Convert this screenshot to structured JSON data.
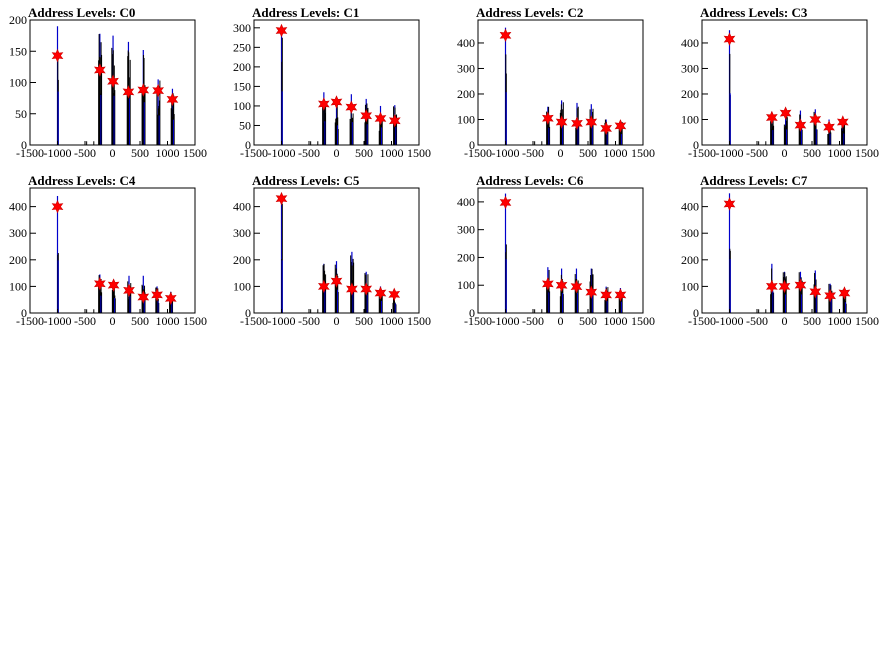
{
  "chart_data": [
    {
      "type": "bar",
      "title": "Address Levels: C0",
      "xlim": [
        -1500,
        1500
      ],
      "ylim": [
        0,
        200
      ],
      "x_ticks": [
        -1500,
        -1000,
        -500,
        0,
        500,
        1000,
        1500
      ],
      "y_ticks": [
        0,
        50,
        100,
        150,
        200
      ],
      "x_tick_labels": [
        "-1500",
        "-1000",
        "-500",
        "0",
        "500",
        "1000",
        "1500"
      ],
      "y_tick_labels": [
        "0",
        "50",
        "100",
        "150",
        "200"
      ],
      "peaks": [
        {
          "x": -1000,
          "height": 190,
          "star": 143
        },
        {
          "x": -230,
          "height": 178,
          "star": 120
        },
        {
          "x": 10,
          "height": 175,
          "star": 102
        },
        {
          "x": 290,
          "height": 165,
          "star": 85
        },
        {
          "x": 560,
          "height": 152,
          "star": 88
        },
        {
          "x": 830,
          "height": 105,
          "star": 87
        },
        {
          "x": 1090,
          "height": 90,
          "star": 73
        }
      ],
      "colors": {
        "hist": "#000000",
        "overlay": "#0000cc",
        "marker": "#ff0000"
      }
    },
    {
      "type": "bar",
      "title": "Address Levels: C1",
      "xlim": [
        -1500,
        1500
      ],
      "ylim": [
        0,
        320
      ],
      "x_ticks": [
        -1500,
        -1000,
        -500,
        0,
        500,
        1000,
        1500
      ],
      "y_ticks": [
        0,
        50,
        100,
        150,
        200,
        250,
        300
      ],
      "x_tick_labels": [
        "-1500",
        "-1000",
        "-500",
        "0",
        "500",
        "1000",
        "1500"
      ],
      "y_tick_labels": [
        "0",
        "50",
        "100",
        "150",
        "200",
        "250",
        "300"
      ],
      "peaks": [
        {
          "x": -1000,
          "height": 305,
          "star": 293
        },
        {
          "x": -230,
          "height": 135,
          "star": 105
        },
        {
          "x": 0,
          "height": 112,
          "star": 110
        },
        {
          "x": 270,
          "height": 130,
          "star": 97
        },
        {
          "x": 540,
          "height": 118,
          "star": 75
        },
        {
          "x": 800,
          "height": 100,
          "star": 68
        },
        {
          "x": 1060,
          "height": 102,
          "star": 62
        }
      ],
      "colors": {
        "hist": "#000000",
        "overlay": "#0000cc",
        "marker": "#ff0000"
      }
    },
    {
      "type": "bar",
      "title": "Address Levels: C2",
      "xlim": [
        -1500,
        1500
      ],
      "ylim": [
        0,
        490
      ],
      "x_ticks": [
        -1500,
        -1000,
        -500,
        0,
        500,
        1000,
        1500
      ],
      "y_ticks": [
        0,
        100,
        200,
        300,
        400
      ],
      "x_tick_labels": [
        "-1500",
        "-1000",
        "-500",
        "0",
        "500",
        "1000",
        "1500"
      ],
      "y_tick_labels": [
        "0",
        "100",
        "200",
        "300",
        "400"
      ],
      "peaks": [
        {
          "x": -1000,
          "height": 460,
          "star": 430
        },
        {
          "x": -230,
          "height": 150,
          "star": 105
        },
        {
          "x": 20,
          "height": 175,
          "star": 90
        },
        {
          "x": 300,
          "height": 165,
          "star": 85
        },
        {
          "x": 560,
          "height": 160,
          "star": 90
        },
        {
          "x": 830,
          "height": 100,
          "star": 65
        },
        {
          "x": 1090,
          "height": 95,
          "star": 75
        }
      ],
      "colors": {
        "hist": "#000000",
        "overlay": "#0000cc",
        "marker": "#ff0000"
      }
    },
    {
      "type": "bar",
      "title": "Address Levels: C3",
      "xlim": [
        -1500,
        1500
      ],
      "ylim": [
        0,
        490
      ],
      "x_ticks": [
        -1500,
        -1000,
        -500,
        0,
        500,
        1000,
        1500
      ],
      "y_ticks": [
        0,
        100,
        200,
        300,
        400
      ],
      "x_tick_labels": [
        "-1500",
        "-1000",
        "-500",
        "0",
        "500",
        "1000",
        "1500"
      ],
      "y_tick_labels": [
        "0",
        "100",
        "200",
        "300",
        "400"
      ],
      "peaks": [
        {
          "x": -1000,
          "height": 450,
          "star": 415
        },
        {
          "x": -230,
          "height": 130,
          "star": 108
        },
        {
          "x": 20,
          "height": 135,
          "star": 125
        },
        {
          "x": 290,
          "height": 135,
          "star": 78
        },
        {
          "x": 560,
          "height": 140,
          "star": 100
        },
        {
          "x": 810,
          "height": 100,
          "star": 70
        },
        {
          "x": 1060,
          "height": 100,
          "star": 90
        }
      ],
      "colors": {
        "hist": "#000000",
        "overlay": "#0000cc",
        "marker": "#ff0000"
      }
    },
    {
      "type": "bar",
      "title": "Address Levels: C4",
      "xlim": [
        -1500,
        1500
      ],
      "ylim": [
        0,
        470
      ],
      "x_ticks": [
        -1500,
        -1000,
        -500,
        0,
        500,
        1000,
        1500
      ],
      "y_ticks": [
        0,
        100,
        200,
        300,
        400
      ],
      "x_tick_labels": [
        "-1500",
        "-1000",
        "-500",
        "0",
        "500",
        "1000",
        "1500"
      ],
      "y_tick_labels": [
        "0",
        "100",
        "200",
        "300",
        "400"
      ],
      "peaks": [
        {
          "x": -1000,
          "height": 440,
          "star": 400
        },
        {
          "x": -230,
          "height": 145,
          "star": 110
        },
        {
          "x": 20,
          "height": 125,
          "star": 105
        },
        {
          "x": 300,
          "height": 140,
          "star": 85
        },
        {
          "x": 560,
          "height": 140,
          "star": 60
        },
        {
          "x": 810,
          "height": 100,
          "star": 68
        },
        {
          "x": 1060,
          "height": 80,
          "star": 55
        }
      ],
      "colors": {
        "hist": "#000000",
        "overlay": "#0000cc",
        "marker": "#ff0000"
      }
    },
    {
      "type": "bar",
      "title": "Address Levels: C5",
      "xlim": [
        -1500,
        1500
      ],
      "ylim": [
        0,
        470
      ],
      "x_ticks": [
        -1500,
        -1000,
        -500,
        0,
        500,
        1000,
        1500
      ],
      "y_ticks": [
        0,
        100,
        200,
        300,
        400
      ],
      "x_tick_labels": [
        "-1500",
        "-1000",
        "-500",
        "0",
        "500",
        "1000",
        "1500"
      ],
      "y_tick_labels": [
        "0",
        "100",
        "200",
        "300",
        "400"
      ],
      "peaks": [
        {
          "x": -1000,
          "height": 440,
          "star": 430
        },
        {
          "x": -230,
          "height": 185,
          "star": 100
        },
        {
          "x": 0,
          "height": 195,
          "star": 120
        },
        {
          "x": 280,
          "height": 230,
          "star": 90
        },
        {
          "x": 540,
          "height": 155,
          "star": 90
        },
        {
          "x": 800,
          "height": 100,
          "star": 75
        },
        {
          "x": 1050,
          "height": 80,
          "star": 70
        }
      ],
      "colors": {
        "hist": "#000000",
        "overlay": "#0000cc",
        "marker": "#ff0000"
      }
    },
    {
      "type": "bar",
      "title": "Address Levels: C6",
      "xlim": [
        -1500,
        1500
      ],
      "ylim": [
        0,
        450
      ],
      "x_ticks": [
        -1500,
        -1000,
        -500,
        0,
        500,
        1000,
        1500
      ],
      "y_ticks": [
        0,
        100,
        200,
        300,
        400
      ],
      "x_tick_labels": [
        "-1500",
        "-1000",
        "-500",
        "0",
        "500",
        "1000",
        "1500"
      ],
      "y_tick_labels": [
        "0",
        "100",
        "200",
        "300",
        "400"
      ],
      "peaks": [
        {
          "x": -1000,
          "height": 430,
          "star": 398
        },
        {
          "x": -230,
          "height": 165,
          "star": 105
        },
        {
          "x": 20,
          "height": 160,
          "star": 100
        },
        {
          "x": 290,
          "height": 160,
          "star": 95
        },
        {
          "x": 560,
          "height": 160,
          "star": 75
        },
        {
          "x": 830,
          "height": 95,
          "star": 65
        },
        {
          "x": 1090,
          "height": 90,
          "star": 65
        }
      ],
      "colors": {
        "hist": "#000000",
        "overlay": "#0000cc",
        "marker": "#ff0000"
      }
    },
    {
      "type": "bar",
      "title": "Address Levels: C7",
      "xlim": [
        -1500,
        1500
      ],
      "ylim": [
        0,
        470
      ],
      "x_ticks": [
        -1500,
        -1000,
        -500,
        0,
        500,
        1000,
        1500
      ],
      "y_ticks": [
        0,
        100,
        200,
        300,
        400
      ],
      "x_tick_labels": [
        "-1500",
        "-1000",
        "-500",
        "0",
        "500",
        "1000",
        "1500"
      ],
      "y_tick_labels": [
        "0",
        "100",
        "200",
        "300",
        "400"
      ],
      "peaks": [
        {
          "x": -1000,
          "height": 450,
          "star": 410
        },
        {
          "x": -230,
          "height": 185,
          "star": 100
        },
        {
          "x": 0,
          "height": 155,
          "star": 100
        },
        {
          "x": 290,
          "height": 155,
          "star": 105
        },
        {
          "x": 560,
          "height": 160,
          "star": 80
        },
        {
          "x": 830,
          "height": 110,
          "star": 65
        },
        {
          "x": 1090,
          "height": 90,
          "star": 75
        }
      ],
      "colors": {
        "hist": "#000000",
        "overlay": "#0000cc",
        "marker": "#ff0000"
      }
    }
  ]
}
